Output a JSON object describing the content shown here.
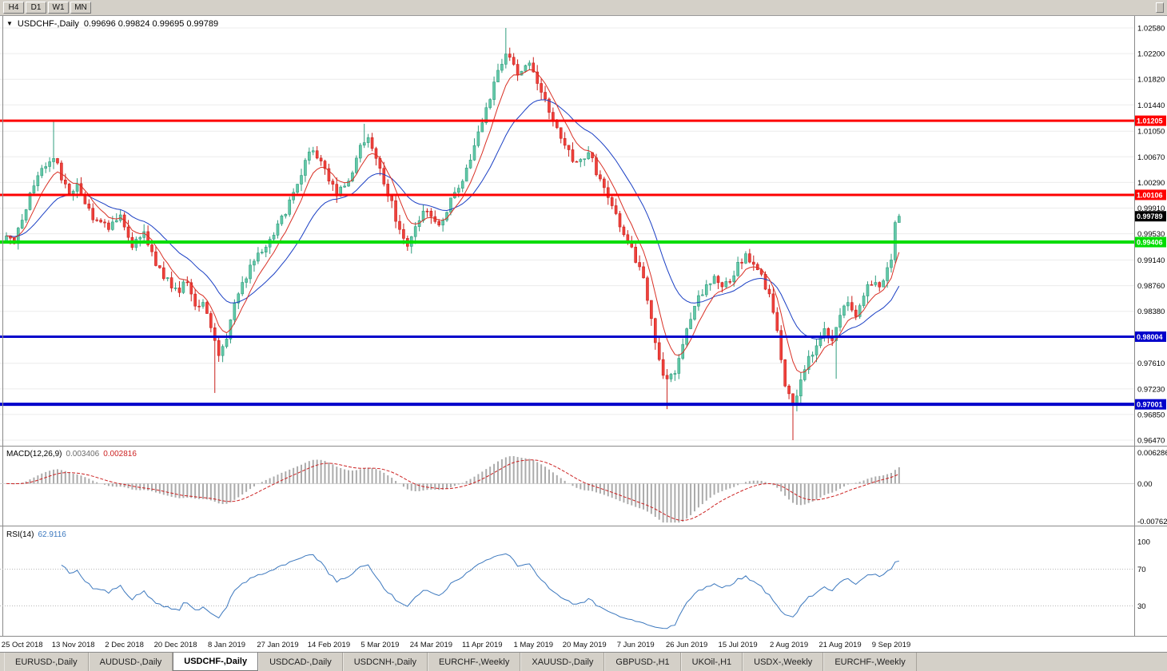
{
  "toolbar": {
    "timeframes": [
      "H4",
      "D1",
      "W1",
      "MN"
    ]
  },
  "chart": {
    "title": "USDCHF-,Daily",
    "ohlc_text": "0.99696 0.99824 0.99695 0.99789"
  },
  "chart_data": {
    "type": "candlestick",
    "symbol": "USDCHF",
    "timeframe": "Daily",
    "current_ohlc": {
      "open": 0.99696,
      "high": 0.99824,
      "low": 0.99695,
      "close": 0.99789
    },
    "bars": 228,
    "close_anchors": [
      [
        0,
        0.9955
      ],
      [
        2,
        0.9935
      ],
      [
        4,
        0.9975
      ],
      [
        6,
        1.001
      ],
      [
        8,
        1.004
      ],
      [
        10,
        1.0055
      ],
      [
        12,
        1.0068
      ],
      [
        14,
        1.0035
      ],
      [
        16,
        1.0012
      ],
      [
        18,
        1.0032
      ],
      [
        20,
        0.9995
      ],
      [
        23,
        0.9972
      ],
      [
        26,
        0.9962
      ],
      [
        29,
        0.9976
      ],
      [
        32,
        0.9938
      ],
      [
        35,
        0.9956
      ],
      [
        38,
        0.9908
      ],
      [
        41,
        0.9882
      ],
      [
        44,
        0.9866
      ],
      [
        46,
        0.9886
      ],
      [
        48,
        0.9846
      ],
      [
        50,
        0.9856
      ],
      [
        52,
        0.9816
      ],
      [
        54,
        0.9776
      ],
      [
        56,
        0.9802
      ],
      [
        58,
        0.985
      ],
      [
        61,
        0.989
      ],
      [
        64,
        0.9922
      ],
      [
        67,
        0.9942
      ],
      [
        70,
        0.9976
      ],
      [
        73,
        1.0012
      ],
      [
        76,
        1.0056
      ],
      [
        78,
        1.008
      ],
      [
        80,
        1.0058
      ],
      [
        82,
        1.0036
      ],
      [
        84,
        1.0006
      ],
      [
        86,
        1.0026
      ],
      [
        88,
        1.0046
      ],
      [
        90,
        1.008
      ],
      [
        92,
        1.0094
      ],
      [
        94,
        1.006
      ],
      [
        96,
        1.003
      ],
      [
        98,
        0.9996
      ],
      [
        100,
        0.9956
      ],
      [
        102,
        0.9936
      ],
      [
        104,
        0.9966
      ],
      [
        106,
        0.9986
      ],
      [
        108,
        0.9976
      ],
      [
        110,
        0.9966
      ],
      [
        112,
        0.999
      ],
      [
        114,
        1.0012
      ],
      [
        116,
        1.0036
      ],
      [
        118,
        1.0066
      ],
      [
        120,
        1.01
      ],
      [
        122,
        1.014
      ],
      [
        124,
        1.0176
      ],
      [
        126,
        1.0206
      ],
      [
        128,
        1.022
      ],
      [
        130,
        1.0192
      ],
      [
        132,
        1.0206
      ],
      [
        134,
        1.0196
      ],
      [
        136,
        1.0166
      ],
      [
        138,
        1.0136
      ],
      [
        140,
        1.011
      ],
      [
        142,
        1.009
      ],
      [
        144,
        1.0066
      ],
      [
        146,
        1.006
      ],
      [
        148,
        1.0072
      ],
      [
        150,
        1.0046
      ],
      [
        152,
        1.0016
      ],
      [
        154,
        0.9992
      ],
      [
        156,
        0.9966
      ],
      [
        158,
        0.9942
      ],
      [
        160,
        0.9916
      ],
      [
        162,
        0.9892
      ],
      [
        164,
        0.9822
      ],
      [
        166,
        0.9766
      ],
      [
        168,
        0.9732
      ],
      [
        170,
        0.9746
      ],
      [
        172,
        0.9786
      ],
      [
        174,
        0.9826
      ],
      [
        176,
        0.9856
      ],
      [
        178,
        0.9876
      ],
      [
        180,
        0.9892
      ],
      [
        182,
        0.9872
      ],
      [
        184,
        0.9886
      ],
      [
        186,
        0.9906
      ],
      [
        188,
        0.9922
      ],
      [
        190,
        0.9902
      ],
      [
        192,
        0.9892
      ],
      [
        194,
        0.9862
      ],
      [
        196,
        0.9806
      ],
      [
        198,
        0.9732
      ],
      [
        200,
        0.97
      ],
      [
        202,
        0.9732
      ],
      [
        204,
        0.9766
      ],
      [
        206,
        0.9792
      ],
      [
        208,
        0.9812
      ],
      [
        210,
        0.9796
      ],
      [
        212,
        0.9836
      ],
      [
        214,
        0.9852
      ],
      [
        216,
        0.9832
      ],
      [
        218,
        0.9866
      ],
      [
        220,
        0.9882
      ],
      [
        222,
        0.9872
      ],
      [
        224,
        0.9902
      ],
      [
        225,
        0.992
      ],
      [
        226,
        0.99696
      ],
      [
        227,
        0.99789
      ]
    ],
    "forced_wicks": [
      [
        12,
        "high",
        1.012
      ],
      [
        91,
        "high",
        1.0116
      ],
      [
        127,
        "high",
        1.0258
      ],
      [
        53,
        "low",
        0.9717
      ],
      [
        168,
        "low",
        0.9693
      ],
      [
        200,
        "low",
        0.9647
      ],
      [
        211,
        "low",
        0.9738
      ]
    ],
    "y_axis": {
      "price_top": 1.02734,
      "price_bottom": 0.96411,
      "ticks": [
        "1.02580",
        "1.02200",
        "1.01820",
        "1.01440",
        "1.01050",
        "1.00670",
        "1.00290",
        "0.99910",
        "0.99530",
        "0.99140",
        "0.98760",
        "0.98380",
        "0.97610",
        "0.97230",
        "0.96850",
        "0.96470"
      ]
    },
    "h_lines": [
      {
        "price": 1.01205,
        "label": "1.01205",
        "color": "#FE0000",
        "width": 3,
        "role": "resistance"
      },
      {
        "price": 1.00106,
        "label": "1.00106",
        "color": "#FE0000",
        "width": 3,
        "role": "resistance"
      },
      {
        "price": 0.99406,
        "label": "0.99406",
        "color": "#00DD00",
        "width": 4,
        "role": "pivot"
      },
      {
        "price": 0.98004,
        "label": "0.98004",
        "color": "#0100CB",
        "width": 3,
        "role": "support"
      },
      {
        "price": 0.97001,
        "label": "0.97001",
        "color": "#0100CB",
        "width": 4,
        "role": "support"
      }
    ],
    "current_price": {
      "value": 0.99789,
      "label": "0.99789",
      "badge_color": "#000000"
    },
    "x_axis": {
      "labels": [
        {
          "bar": 4,
          "text": "25 Oct 2018"
        },
        {
          "bar": 17,
          "text": "13 Nov 2018"
        },
        {
          "bar": 30,
          "text": "2 Dec 2018"
        },
        {
          "bar": 43,
          "text": "20 Dec 2018"
        },
        {
          "bar": 56,
          "text": "8 Jan 2019"
        },
        {
          "bar": 69,
          "text": "27 Jan 2019"
        },
        {
          "bar": 82,
          "text": "14 Feb 2019"
        },
        {
          "bar": 95,
          "text": "5 Mar 2019"
        },
        {
          "bar": 108,
          "text": "24 Mar 2019"
        },
        {
          "bar": 121,
          "text": "11 Apr 2019"
        },
        {
          "bar": 134,
          "text": "1 May 2019"
        },
        {
          "bar": 147,
          "text": "20 May 2019"
        },
        {
          "bar": 160,
          "text": "7 Jun 2019"
        },
        {
          "bar": 173,
          "text": "26 Jun 2019"
        },
        {
          "bar": 186,
          "text": "15 Jul 2019"
        },
        {
          "bar": 199,
          "text": "2 Aug 2019"
        },
        {
          "bar": 212,
          "text": "21 Aug 2019"
        },
        {
          "bar": 225,
          "text": "9 Sep 2019"
        }
      ]
    },
    "indicators": {
      "ma_fast": {
        "type": "EMA",
        "period": 7,
        "color": "#D93025"
      },
      "ma_slow": {
        "type": "EMA",
        "period": 21,
        "color": "#1A3FC4"
      },
      "macd": {
        "label": "MACD(12,26,9)",
        "main_value": "0.003406",
        "signal_value": "0.002816",
        "params": [
          12,
          26,
          9
        ],
        "axis_ticks": [
          {
            "value": 0.006286,
            "text": "0.006286"
          },
          {
            "value": 0,
            "text": "0.00"
          },
          {
            "value": -0.00762,
            "text": "-0.00762"
          }
        ],
        "range_top": 0.0072,
        "range_bottom": -0.0082,
        "histogram_color": "#ABABAB",
        "signal_color": "#CC2222"
      },
      "rsi": {
        "label": "RSI(14)",
        "value": "62.9116",
        "period": 14,
        "color": "#3C78BE",
        "levels": [
          70,
          30
        ],
        "axis_ticks": [
          {
            "value": 100,
            "text": "100"
          },
          {
            "value": 70,
            "text": "70"
          },
          {
            "value": 30,
            "text": "30"
          }
        ]
      }
    },
    "candle_colors": {
      "up_fill": "#63C9A8",
      "up_edge": "#2F9C7E",
      "down_fill": "#F0413C",
      "down_edge": "#C9201C"
    }
  },
  "tabs": {
    "active_index": 2,
    "items": [
      "EURUSD-,Daily",
      "AUDUSD-,Daily",
      "USDCHF-,Daily",
      "USDCAD-,Daily",
      "USDCNH-,Daily",
      "EURCHF-,Weekly",
      "XAUUSD-,Daily",
      "GBPUSD-,H1",
      "UKOil-,H1",
      "USDX-,Weekly",
      "EURCHF-,Weekly"
    ]
  }
}
